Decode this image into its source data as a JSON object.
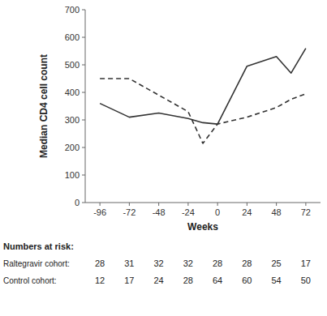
{
  "chart_data": {
    "type": "line",
    "x": [
      -96,
      -72,
      -48,
      -24,
      -12,
      0,
      24,
      48,
      60,
      72
    ],
    "series": [
      {
        "color": "#333333",
        "line_style": "solid",
        "values": [
          360,
          310,
          325,
          305,
          290,
          285,
          495,
          530,
          470,
          560
        ]
      },
      {
        "color": "#333333",
        "line_style": "dashed",
        "values": [
          450,
          450,
          390,
          330,
          215,
          285,
          310,
          345,
          375,
          395
        ]
      }
    ],
    "xlim": [
      -108,
      84
    ],
    "xticks": [
      -96,
      -72,
      -48,
      -24,
      0,
      24,
      48,
      72
    ],
    "ylim": [
      0,
      700
    ],
    "yticks": [
      0,
      100,
      200,
      300,
      400,
      500,
      600,
      700
    ],
    "xlabel": "Weeks",
    "ylabel": "Median CD4 cell count",
    "grid": false,
    "numbers_at_risk": {
      "label": "Numbers at risk:",
      "x": [
        -96,
        -72,
        -48,
        -24,
        0,
        24,
        48,
        72
      ],
      "rows": [
        {
          "label": "Raltegravir cohort:",
          "values": [
            28,
            31,
            32,
            32,
            28,
            28,
            25,
            17
          ]
        },
        {
          "label": "Control cohort:",
          "values": [
            12,
            17,
            24,
            28,
            64,
            60,
            54,
            50
          ]
        }
      ]
    }
  }
}
